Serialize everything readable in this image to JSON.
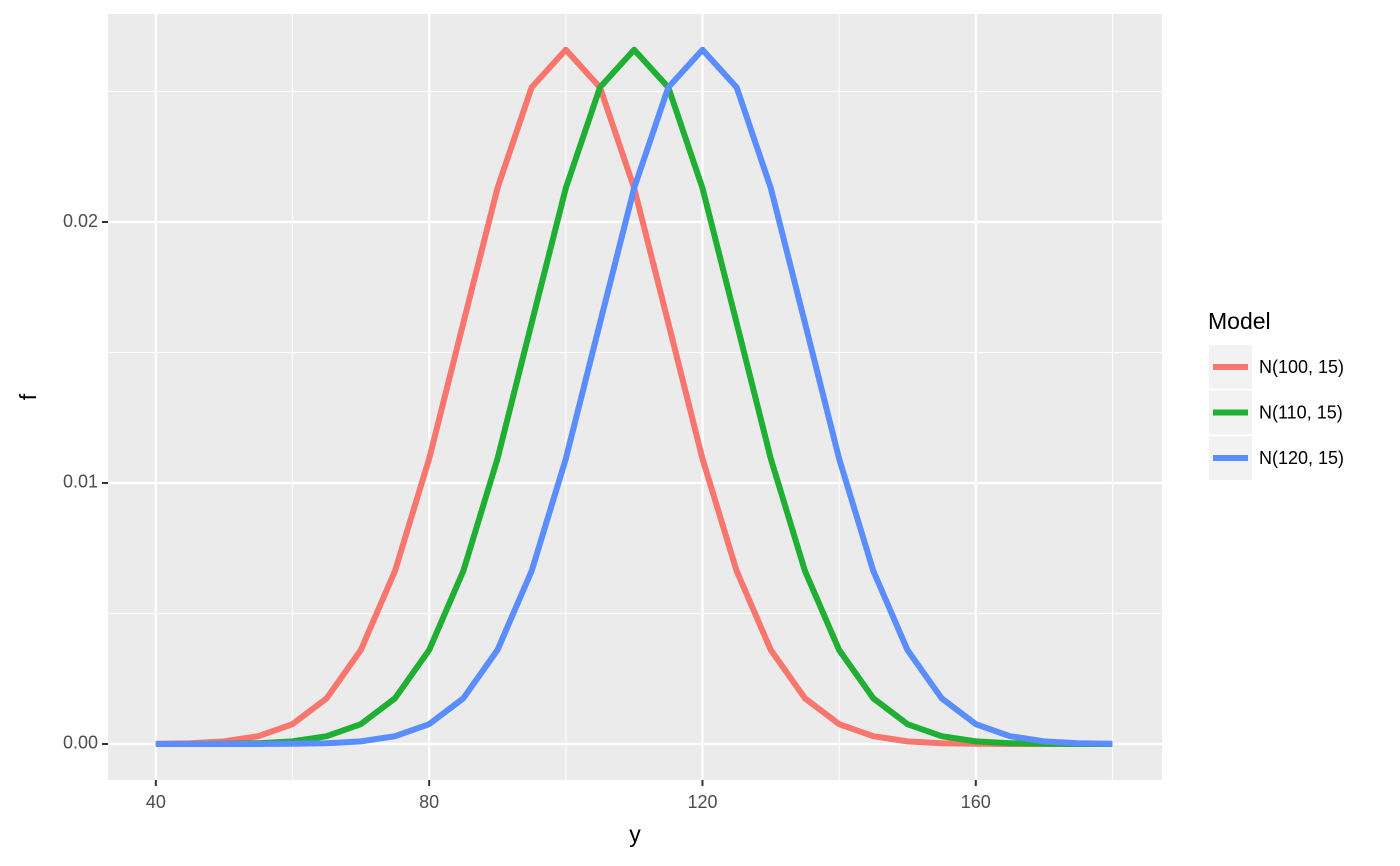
{
  "chart_data": {
    "type": "line",
    "x_label": "y",
    "y_label": "f",
    "legend_title": "Model",
    "x": [
      40,
      45,
      50,
      55,
      60,
      65,
      70,
      75,
      80,
      85,
      90,
      95,
      100,
      105,
      110,
      115,
      120,
      125,
      130,
      135,
      140,
      145,
      150,
      155,
      160,
      165,
      170,
      175,
      180
    ],
    "series": [
      {
        "name": "N(100, 15)",
        "color": "#F8766D",
        "values": [
          1e-05,
          3e-05,
          0.0001,
          0.0003,
          0.00076,
          0.00175,
          0.0036,
          0.00663,
          0.01093,
          0.01613,
          0.0213,
          0.02516,
          0.0266,
          0.02516,
          0.0213,
          0.01613,
          0.01093,
          0.00663,
          0.0036,
          0.00175,
          0.00076,
          0.0003,
          0.0001,
          3e-05,
          1e-05,
          0,
          0,
          0,
          0
        ]
      },
      {
        "name": "N(110, 15)",
        "color": "#1FB033",
        "values": [
          0,
          0,
          1e-05,
          3e-05,
          0.0001,
          0.0003,
          0.00076,
          0.00175,
          0.0036,
          0.00663,
          0.01093,
          0.01613,
          0.0213,
          0.02516,
          0.0266,
          0.02516,
          0.0213,
          0.01613,
          0.01093,
          0.00663,
          0.0036,
          0.00175,
          0.00076,
          0.0003,
          0.0001,
          3e-05,
          1e-05,
          0,
          0
        ]
      },
      {
        "name": "N(120, 15)",
        "color": "#5A8DFF",
        "values": [
          0,
          0,
          0,
          0,
          1e-05,
          3e-05,
          0.0001,
          0.0003,
          0.00076,
          0.00175,
          0.0036,
          0.00663,
          0.01093,
          0.01613,
          0.0213,
          0.02516,
          0.0266,
          0.02516,
          0.0213,
          0.01613,
          0.01093,
          0.00663,
          0.0036,
          0.00175,
          0.00076,
          0.0003,
          0.0001,
          3e-05,
          1e-05
        ]
      }
    ],
    "xlim": [
      33,
      187.25
    ],
    "ylim": [
      -0.00138,
      0.02797
    ],
    "xticks": [
      40,
      80,
      120,
      160
    ],
    "yticks": [
      {
        "value": 0,
        "label": "0.00"
      },
      {
        "value": 0.01,
        "label": "0.01"
      },
      {
        "value": 0.02,
        "label": "0.02"
      }
    ],
    "x_minor_breaks": [
      60,
      100,
      140,
      180
    ],
    "y_minor_breaks": [
      0.005,
      0.015,
      0.025
    ],
    "grid": true,
    "legend_position": "right"
  }
}
